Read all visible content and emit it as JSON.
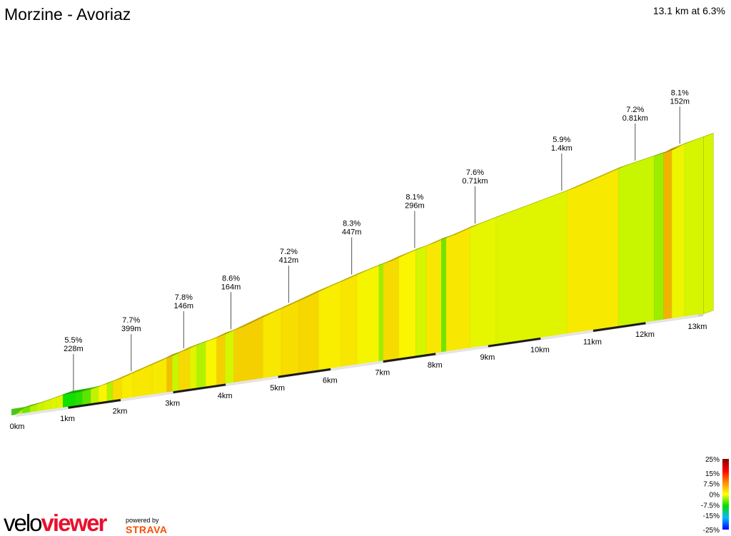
{
  "header": {
    "title": "Morzine - Avoriaz",
    "summary": "13.1 km at 6.3%"
  },
  "branding": {
    "logo_part1": "velo",
    "logo_part2": "viewer",
    "powered_by": "powered by",
    "strava": "STRAVA"
  },
  "chart_data": {
    "type": "area",
    "title": "Morzine - Avoriaz",
    "subtitle": "13.1 km at 6.3%",
    "x_unit": "km",
    "distance_ticks": [
      "0km",
      "1km",
      "2km",
      "3km",
      "4km",
      "5km",
      "6km",
      "7km",
      "8km",
      "9km",
      "10km",
      "11km",
      "12km",
      "13km"
    ],
    "distance_km": [
      0,
      0.13,
      0.27,
      0.4,
      0.53,
      0.66,
      0.78,
      0.9,
      1.13,
      1.27,
      1.43,
      1.58,
      1.74,
      1.85,
      2.02,
      2.24,
      2.6,
      2.88,
      2.98,
      3.1,
      3.32,
      3.45,
      3.62,
      3.83,
      3.99,
      4.16,
      4.71,
      5.06,
      5.39,
      5.77,
      6.2,
      6.5,
      6.92,
      7.0,
      7.3,
      7.62,
      7.82,
      8.11,
      8.2,
      8.66,
      9.15,
      10.5,
      11.48,
      12.16,
      12.34,
      12.5,
      12.74,
      13.1
    ],
    "gradient_pct": [
      4.5,
      3.0,
      4.5,
      5.0,
      5.5,
      5.8,
      6.0,
      0.5,
      1.0,
      2.5,
      4.8,
      7.0,
      4.5,
      8.0,
      7.4,
      7.6,
      7.5,
      9.5,
      5.0,
      8.2,
      6.0,
      4.5,
      7.0,
      8.6,
      5.5,
      8.6,
      7.6,
      8.0,
      8.3,
      7.3,
      7.7,
      6.8,
      4.0,
      8.1,
      7.0,
      5.5,
      7.6,
      3.0,
      7.6,
      6.2,
      5.9,
      7.5,
      5.0,
      4.0,
      10.0,
      6.5,
      5.5
    ],
    "annotations": [
      {
        "km": 1.1,
        "gradient": "5.5%",
        "length": "228m"
      },
      {
        "km": 2.2,
        "gradient": "7.7%",
        "length": "399m"
      },
      {
        "km": 3.2,
        "gradient": "7.8%",
        "length": "146m"
      },
      {
        "km": 4.1,
        "gradient": "8.6%",
        "length": "164m"
      },
      {
        "km": 5.2,
        "gradient": "7.2%",
        "length": "412m"
      },
      {
        "km": 6.4,
        "gradient": "8.3%",
        "length": "447m"
      },
      {
        "km": 7.6,
        "gradient": "8.1%",
        "length": "296m"
      },
      {
        "km": 8.75,
        "gradient": "7.6%",
        "length": "0.71km"
      },
      {
        "km": 10.4,
        "gradient": "5.9%",
        "length": "1.4km"
      },
      {
        "km": 11.8,
        "gradient": "7.2%",
        "length": "0.81km"
      },
      {
        "km": 12.65,
        "gradient": "8.1%",
        "length": "152m"
      }
    ],
    "legend": {
      "title": "gradient",
      "labels": [
        "25%",
        "15%",
        "7.5%",
        "0%",
        "-7.5%",
        "-15%",
        "-25%"
      ],
      "values": [
        25,
        15,
        7.5,
        0,
        -7.5,
        -15,
        -25
      ],
      "colors": [
        "#8b0000",
        "#ff0000",
        "#ff8c00",
        "#ffff00",
        "#00dd00",
        "#00bbff",
        "#0000ff"
      ],
      "placement": "bottom-right"
    }
  }
}
